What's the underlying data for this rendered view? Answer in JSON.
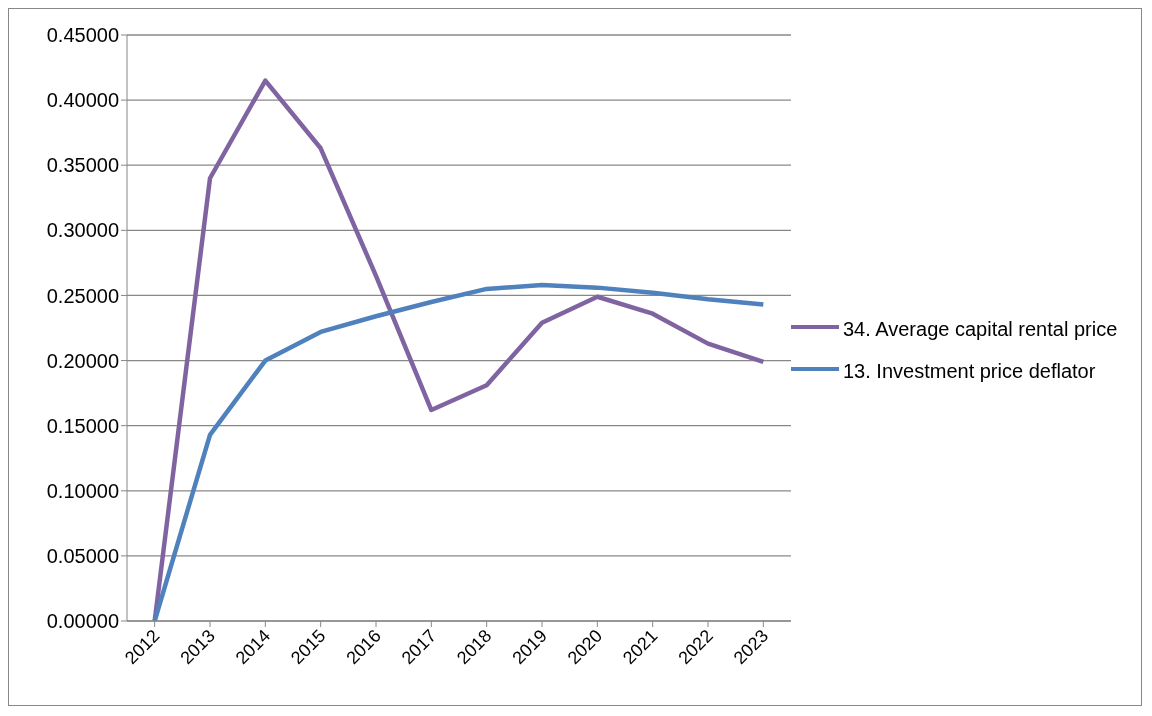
{
  "chart_data": {
    "type": "line",
    "categories": [
      "2012",
      "2013",
      "2014",
      "2015",
      "2016",
      "2017",
      "2018",
      "2019",
      "2020",
      "2021",
      "2022",
      "2023"
    ],
    "series": [
      {
        "name": "34. Average capital rental price",
        "color": "#8064a2",
        "values": [
          0,
          0.34,
          0.415,
          0.363,
          0.265,
          0.162,
          0.181,
          0.229,
          0.249,
          0.236,
          0.213,
          0.199
        ]
      },
      {
        "name": "13. Investment price deflator",
        "color": "#4f81bd",
        "values": [
          0,
          0.143,
          0.2,
          0.222,
          0.234,
          0.245,
          0.255,
          0.258,
          0.256,
          0.252,
          0.247,
          0.243
        ]
      }
    ],
    "ylim": [
      0,
      0.45
    ],
    "yticks": [
      {
        "value": 0,
        "label": "0.00000"
      },
      {
        "value": 0.05,
        "label": "0.05000"
      },
      {
        "value": 0.1,
        "label": "0.10000"
      },
      {
        "value": 0.15,
        "label": "0.15000"
      },
      {
        "value": 0.2,
        "label": "0.20000"
      },
      {
        "value": 0.25,
        "label": "0.25000"
      },
      {
        "value": 0.3,
        "label": "0.30000"
      },
      {
        "value": 0.35,
        "label": "0.35000"
      },
      {
        "value": 0.4,
        "label": "0.40000"
      },
      {
        "value": 0.45,
        "label": "0.45000"
      }
    ],
    "grid": "y",
    "legend": "right",
    "marker": "none",
    "line_style": "solid"
  }
}
